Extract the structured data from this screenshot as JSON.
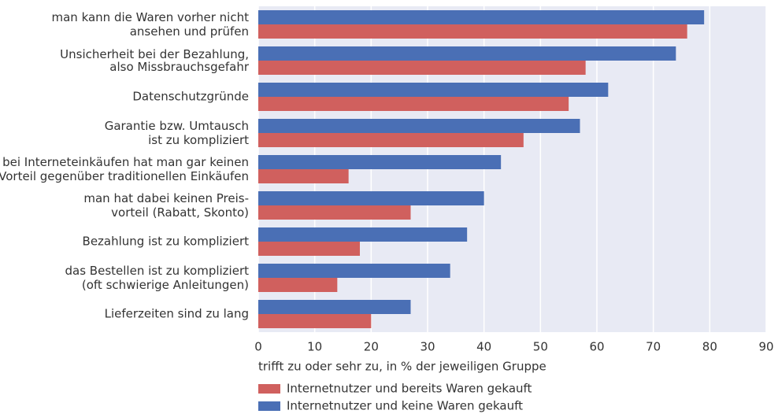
{
  "chart_data": {
    "type": "hbar",
    "categories": [
      "man kann die Waren vorher nicht\nansehen und prüfen",
      "Unsicherheit bei der Bezahlung,\nalso Missbrauchsgefahr",
      "Datenschutzgründe",
      "Garantie bzw. Umtausch\nist zu kompliziert",
      "bei Interneteinkäufen hat man gar keinen\nVorteil gegenüber traditionellen Einkäufen",
      "man hat dabei keinen Preis-\nvorteil (Rabatt, Skonto)",
      "Bezahlung ist zu kompliziert",
      "das Bestellen ist zu kompliziert\n(oft schwierige Anleitungen)",
      "Lieferzeiten sind zu lang"
    ],
    "series": [
      {
        "name": "Internetnutzer und bereits Waren gekauft",
        "color": "#d0605e",
        "values": [
          76,
          58,
          55,
          47,
          16,
          27,
          18,
          14,
          20
        ]
      },
      {
        "name": "Internetnutzer und keine Waren gekauft",
        "color": "#4a6fb5",
        "values": [
          79,
          74,
          62,
          57,
          43,
          40,
          37,
          34,
          27
        ]
      }
    ],
    "xlabel": "trifft zu oder sehr zu, in % der jeweiligen Gruppe",
    "xlim": [
      0,
      90
    ],
    "xticks": [
      0,
      10,
      20,
      30,
      40,
      50,
      60,
      70,
      80,
      90
    ],
    "grid": true,
    "legend": "bottom"
  }
}
